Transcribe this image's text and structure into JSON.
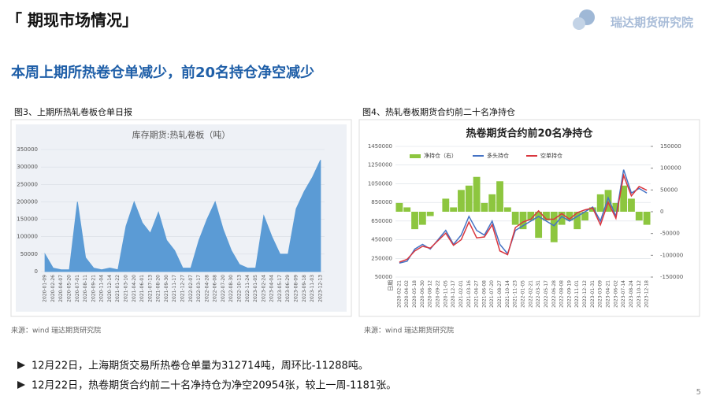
{
  "header": {
    "title": "「 期现市场情况」",
    "logo": "瑞达期货研究院"
  },
  "headline": "本周上期所热卷仓单减少，前20名持仓净空减少",
  "captions": [
    "图3、上期所热轧卷板仓单日报",
    "图4、热轧卷板期货合约前二十名净持仓"
  ],
  "sources": [
    "来源：wind   瑞达期货研究院",
    "来源：wind   瑞达期货研究院"
  ],
  "bullets": [
    "12月22日，上海期货交易所热卷仓单量为312714吨，周环比-11288吨。",
    "12月22日，热卷期货合约前二十名净持仓为净空20954张，较上一周-1181张。"
  ],
  "page_number": "5",
  "chart_data": [
    {
      "type": "area",
      "title": "库存期货:热轧卷板（吨）",
      "color": "#5b9bd5",
      "categories": [
        "2020-01-09",
        "2020-02-26",
        "2020-04-07",
        "2020-05-20",
        "2020-07-01",
        "2020-08-11",
        "2020-09-21",
        "2020-11-04",
        "2020-12-14",
        "2021-01-22",
        "2021-03-10",
        "2021-04-20",
        "2021-06-01",
        "2021-07-13",
        "2021-08-20",
        "2021-09-30",
        "2021-11-17",
        "2021-12-27",
        "2022-02-07",
        "2022-03-17",
        "2022-04-28",
        "2022-06-08",
        "2022-07-20",
        "2022-08-30",
        "2022-10-13",
        "2022-11-24",
        "2023-01-05",
        "2023-02-24",
        "2023-04-04",
        "2023-05-17",
        "2023-06-29",
        "2023-08-09",
        "2023-09-18",
        "2023-11-03",
        "2023-12-13"
      ],
      "values": [
        50000,
        10000,
        5000,
        5000,
        200000,
        40000,
        10000,
        5000,
        10000,
        5000,
        130000,
        200000,
        140000,
        110000,
        170000,
        90000,
        60000,
        10000,
        10000,
        90000,
        150000,
        200000,
        120000,
        60000,
        20000,
        10000,
        10000,
        160000,
        100000,
        50000,
        50000,
        180000,
        230000,
        270000,
        320000
      ],
      "ylim": [
        0,
        350000
      ],
      "yticks": [
        0,
        50000,
        100000,
        150000,
        200000,
        250000,
        300000,
        350000
      ],
      "grid": true
    },
    {
      "type": "combo",
      "title": "热卷期货合约前20名净持仓",
      "x_label": "日期",
      "categories": [
        "2020-02-21",
        "2020-04-02",
        "2020-05-18",
        "2020-06-30",
        "2020-08-12",
        "2020-09-22",
        "2020-11-05",
        "2020-12-17",
        "2021-02-01",
        "2021-03-16",
        "2021-04-27",
        "2021-06-08",
        "2021-07-20",
        "2021-08-27",
        "2021-10-14",
        "2021-11-23",
        "2022-01-05",
        "2022-02-21",
        "2022-03-31",
        "2022-05-17",
        "2022-06-28",
        "2022-08-08",
        "2022-09-19",
        "2022-11-01",
        "2022-12-12",
        "2023-01-31",
        "2023-03-09",
        "2023-04-21",
        "2023-06-02",
        "2023-07-14",
        "2023-08-24",
        "2023-10-12",
        "2023-12-18"
      ],
      "series": [
        {
          "name": "净持仓（右）",
          "type": "bar",
          "axis": "y2",
          "color": "#8dc63f",
          "values": [
            20000,
            10000,
            -40000,
            -30000,
            -10000,
            0,
            30000,
            10000,
            50000,
            60000,
            80000,
            20000,
            40000,
            70000,
            10000,
            -30000,
            -40000,
            -20000,
            -60000,
            -20000,
            -70000,
            -30000,
            -20000,
            -40000,
            -20000,
            10000,
            40000,
            50000,
            20000,
            60000,
            30000,
            -20000,
            -30000
          ]
        },
        {
          "name": "多头持仓",
          "type": "line",
          "color": "#4472c4",
          "values": [
            200000,
            220000,
            350000,
            400000,
            350000,
            450000,
            550000,
            400000,
            500000,
            700000,
            550000,
            500000,
            650000,
            400000,
            300000,
            550000,
            600000,
            650000,
            700000,
            650000,
            600000,
            700000,
            650000,
            700000,
            750000,
            800000,
            650000,
            900000,
            700000,
            1200000,
            950000,
            1000000,
            950000
          ]
        },
        {
          "name": "空单持仓",
          "type": "line",
          "color": "#d9363e",
          "values": [
            210000,
            240000,
            330000,
            380000,
            360000,
            440000,
            520000,
            390000,
            450000,
            640000,
            470000,
            480000,
            610000,
            330000,
            290000,
            580000,
            640000,
            670000,
            760000,
            670000,
            670000,
            730000,
            670000,
            740000,
            770000,
            790000,
            610000,
            850000,
            680000,
            1140000,
            920000,
            1020000,
            980000
          ]
        }
      ],
      "ylim": [
        50000,
        1450000
      ],
      "yticks": [
        50000,
        250000,
        450000,
        650000,
        850000,
        1050000,
        1250000,
        1450000
      ],
      "y2lim": [
        -150000,
        150000
      ],
      "y2ticks": [
        -150000,
        -100000,
        -50000,
        0,
        50000,
        100000,
        150000
      ],
      "grid": true
    }
  ]
}
